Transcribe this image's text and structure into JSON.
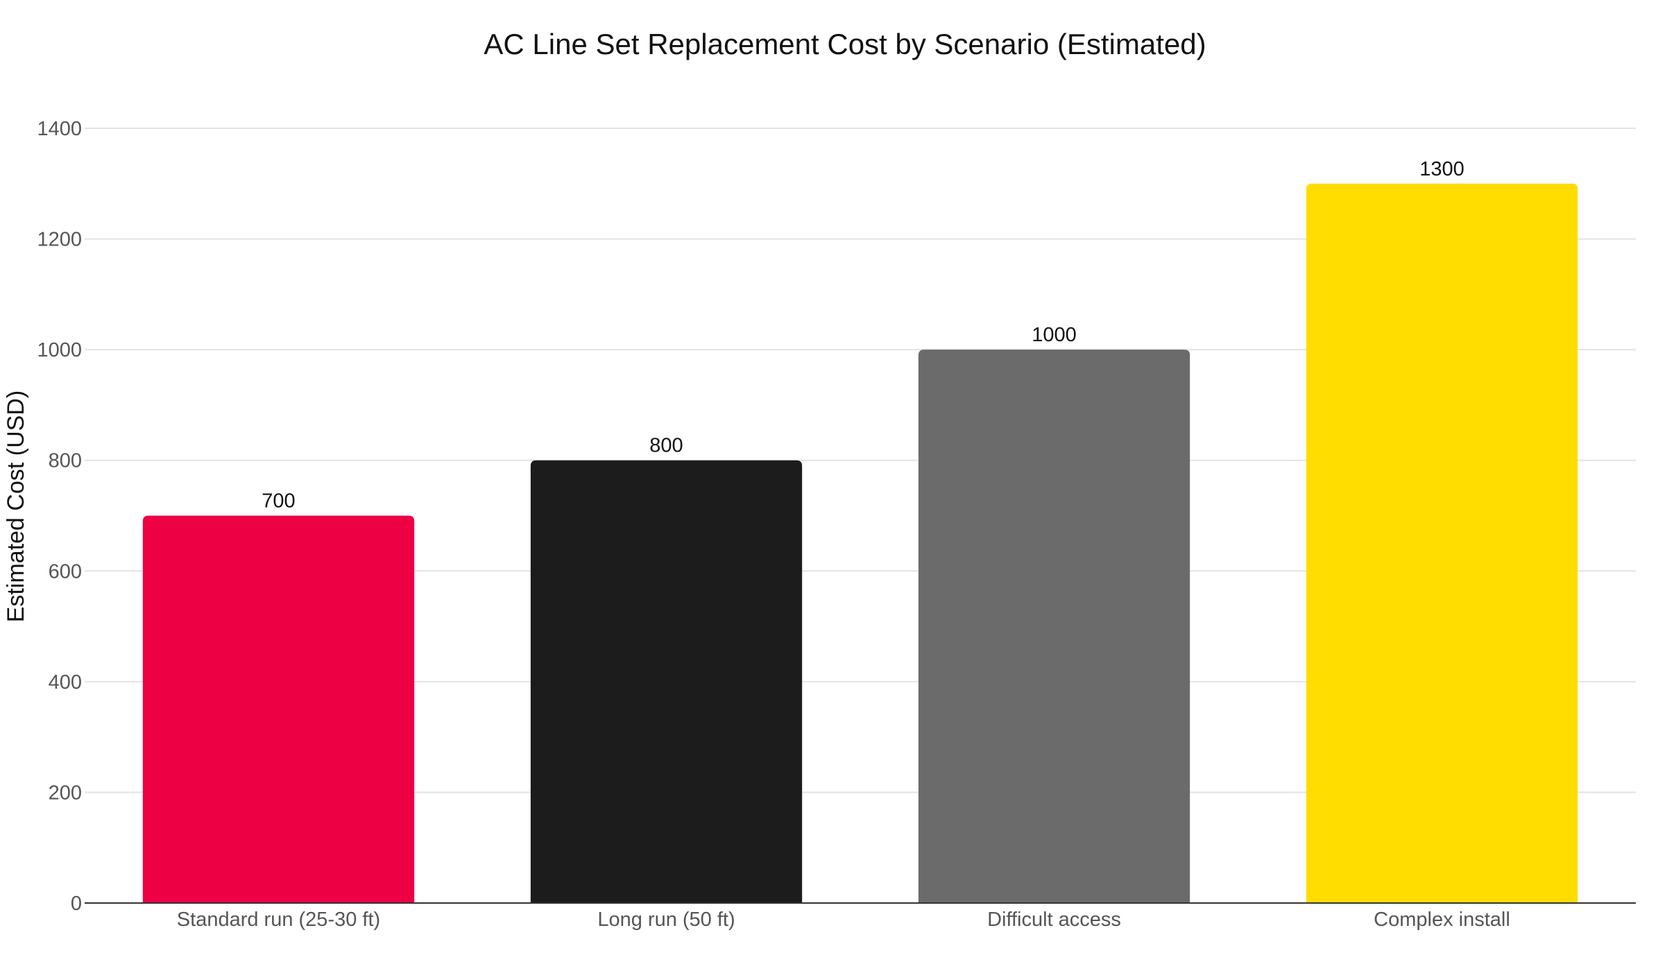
{
  "chart_data": {
    "type": "bar",
    "title": "AC Line Set Replacement Cost by Scenario (Estimated)",
    "xlabel": "",
    "ylabel": "Estimated Cost (USD)",
    "categories": [
      "Standard run (25-30 ft)",
      "Long run (50 ft)",
      "Difficult access",
      "Complex install"
    ],
    "values": [
      700,
      800,
      1000,
      1300
    ],
    "value_labels": [
      "700",
      "800",
      "1000",
      "1300"
    ],
    "colors": [
      "#ee0044",
      "#1c1c1c",
      "#6b6b6b",
      "#ffdd00"
    ],
    "ylim": [
      0,
      1400
    ],
    "yticks": [
      0,
      200,
      400,
      600,
      800,
      1000,
      1200,
      1400
    ],
    "grid": true,
    "legend": "none"
  }
}
